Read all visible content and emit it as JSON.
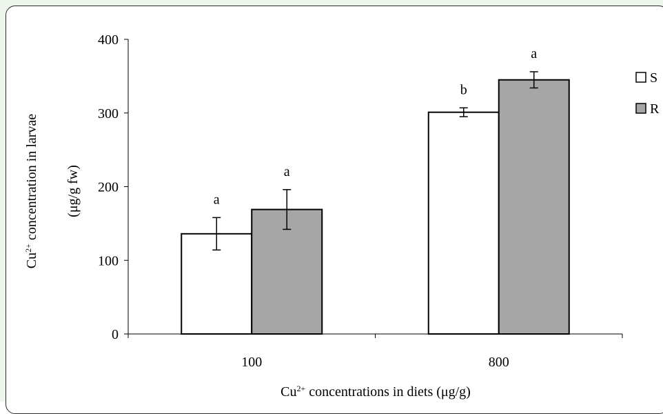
{
  "chart_data": {
    "type": "bar",
    "title": "",
    "xlabel": "Cu2+ concentrations in diets (µg/g)",
    "xlabel_parts": {
      "pre": "Cu",
      "sup": "2+",
      "post": " concentrations in diets (μg/g)"
    },
    "ylabel_line1": {
      "pre": "Cu",
      "sup": "2+",
      "post": " concentration in larvae"
    },
    "ylabel_line2": "(μg/g fw)",
    "ylim": [
      0,
      400
    ],
    "yticks": [
      "0",
      "100",
      "200",
      "300",
      "400"
    ],
    "ytick_values": [
      0,
      100,
      200,
      300,
      400
    ],
    "categories": [
      "100",
      "800"
    ],
    "series": [
      {
        "name": "S",
        "color": "#ffffff",
        "values": [
          136,
          301
        ],
        "errors": [
          22,
          6
        ],
        "letters": [
          "a",
          "b"
        ]
      },
      {
        "name": "R",
        "color": "#a6a6a6",
        "values": [
          169,
          345
        ],
        "errors": [
          27,
          11
        ],
        "letters": [
          "a",
          "a"
        ]
      }
    ],
    "legend_position": "right",
    "grid": false
  }
}
